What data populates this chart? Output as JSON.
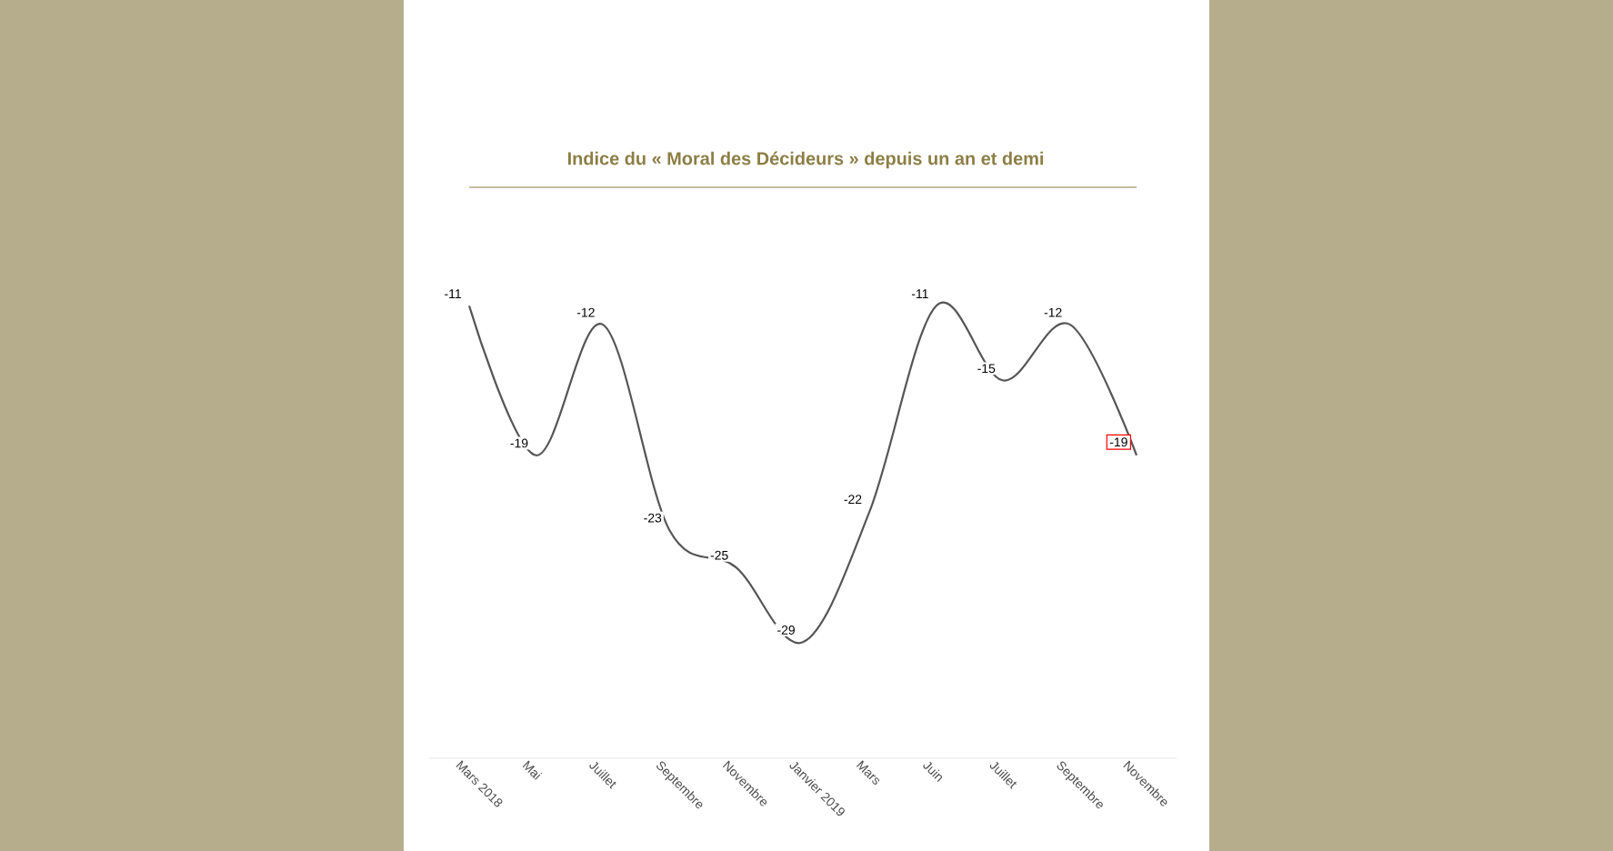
{
  "chart_data": {
    "type": "line",
    "title": "Indice du « Moral des Décideurs » depuis un an et demi",
    "categories": [
      "Mars 2018",
      "Mai",
      "Juillet",
      "Septembre",
      "Novembre",
      "Janvier 2019",
      "Mars",
      "Juin",
      "Juillet",
      "Septembre",
      "Novembre"
    ],
    "values": [
      -11,
      -19,
      -12,
      -23,
      -25,
      -29,
      -22,
      -11,
      -15,
      -12,
      -19
    ],
    "color": "#555555",
    "data_labels": true,
    "marker": "none",
    "line_style": "solid"
  }
}
